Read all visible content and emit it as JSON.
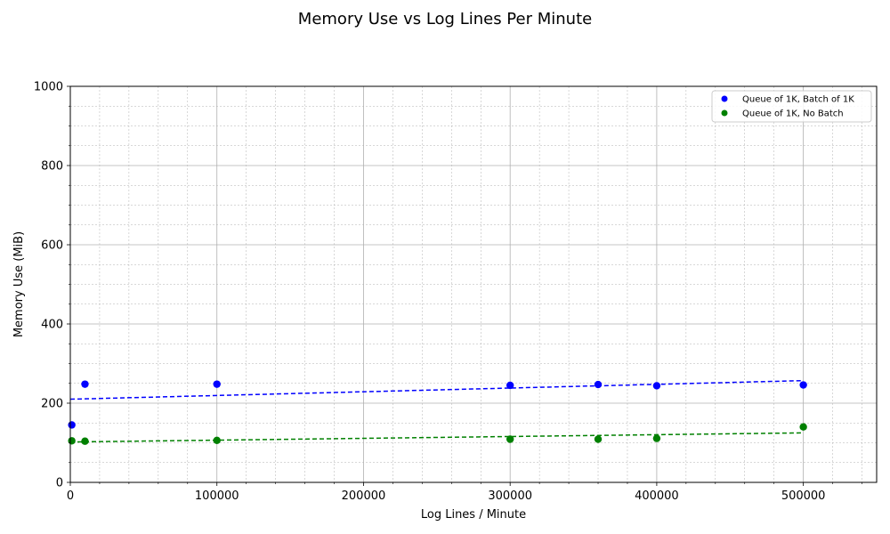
{
  "chart_data": {
    "type": "scatter",
    "title": "Memory Use vs Log Lines Per Minute",
    "xlabel": "Log Lines / Minute",
    "ylabel": "Memory Use (MiB)",
    "xlim": [
      0,
      550000
    ],
    "ylim": [
      0,
      1000
    ],
    "xticks": [
      0,
      100000,
      200000,
      300000,
      400000,
      500000
    ],
    "yticks": [
      0,
      200,
      400,
      600,
      800,
      1000
    ],
    "grid": true,
    "legend_position": "upper right",
    "series": [
      {
        "name": "Queue of 1K, Batch of 1K",
        "color": "#0000ff",
        "marker": "circle",
        "x": [
          1000,
          10000,
          100000,
          300000,
          360000,
          400000,
          500000
        ],
        "y": [
          145,
          248,
          248,
          245,
          247,
          244,
          246
        ],
        "trendline": {
          "x": [
            0,
            500000
          ],
          "y": [
            210,
            257
          ]
        }
      },
      {
        "name": "Queue of 1K, No Batch",
        "color": "#008000",
        "marker": "circle",
        "x": [
          1000,
          10000,
          100000,
          300000,
          360000,
          400000,
          500000
        ],
        "y": [
          105,
          104,
          106,
          109,
          109,
          111,
          140
        ],
        "trendline": {
          "x": [
            0,
            500000
          ],
          "y": [
            102,
            125
          ]
        }
      }
    ]
  }
}
